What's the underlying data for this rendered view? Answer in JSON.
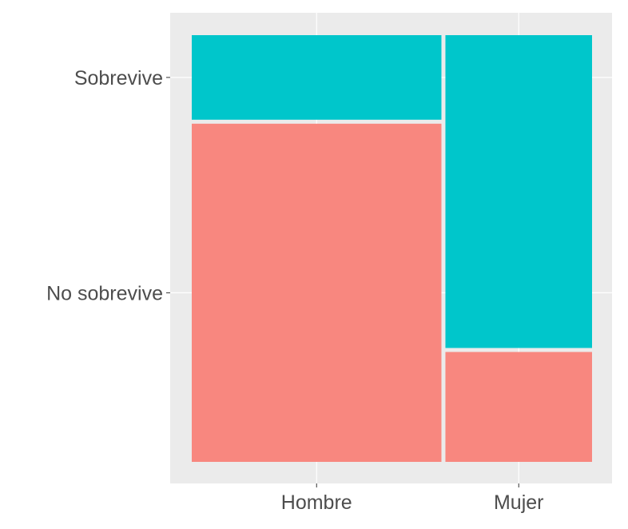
{
  "chart_data": {
    "type": "mosaic",
    "x_categories": [
      "Hombre",
      "Mujer"
    ],
    "x_proportions": [
      0.63,
      0.37
    ],
    "y_categories": [
      "No sobrevive",
      "Sobrevive"
    ],
    "conditional_proportions": {
      "Hombre": {
        "No sobrevive": 0.8,
        "Sobrevive": 0.2
      },
      "Mujer": {
        "No sobrevive": 0.26,
        "Sobrevive": 0.74
      }
    },
    "colors": {
      "No sobrevive": "#F8877F",
      "Sobrevive": "#00C6CB"
    },
    "panel_background": "#EBEBEB",
    "grid": true,
    "legend": "none",
    "title": "",
    "xlabel": "",
    "ylabel": ""
  }
}
